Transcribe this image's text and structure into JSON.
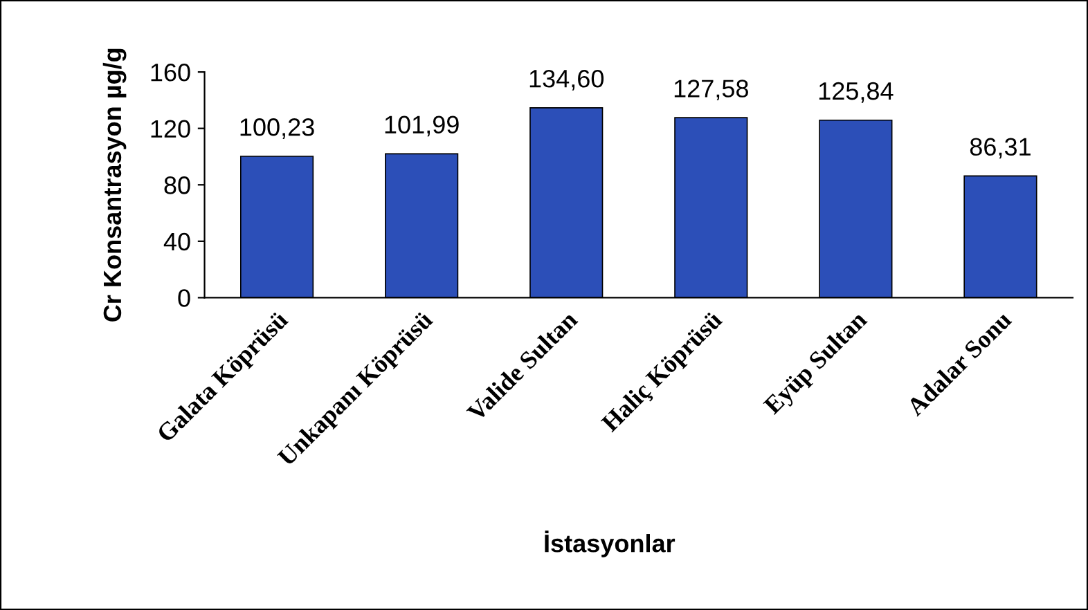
{
  "chart_data": {
    "type": "bar",
    "xlabel": "İstasyonlar",
    "ylabel": "Cr Konsantrasyon µg/g",
    "categories": [
      "Galata Köprüsü",
      "Unkapanı Köprüsü",
      "Valide Sultan",
      "Haliç Köprüsü",
      "Eyüp Sultan",
      "Adalar Sonu"
    ],
    "values": [
      100.23,
      101.99,
      134.6,
      127.58,
      125.84,
      86.31
    ],
    "value_labels": [
      "100,23",
      "101,99",
      "134,60",
      "127,58",
      "125,84",
      "86,31"
    ],
    "color": "#2c4fb8",
    "ylim": [
      0,
      160
    ],
    "yticks": [
      0,
      40,
      80,
      120,
      160
    ],
    "grid": false
  }
}
